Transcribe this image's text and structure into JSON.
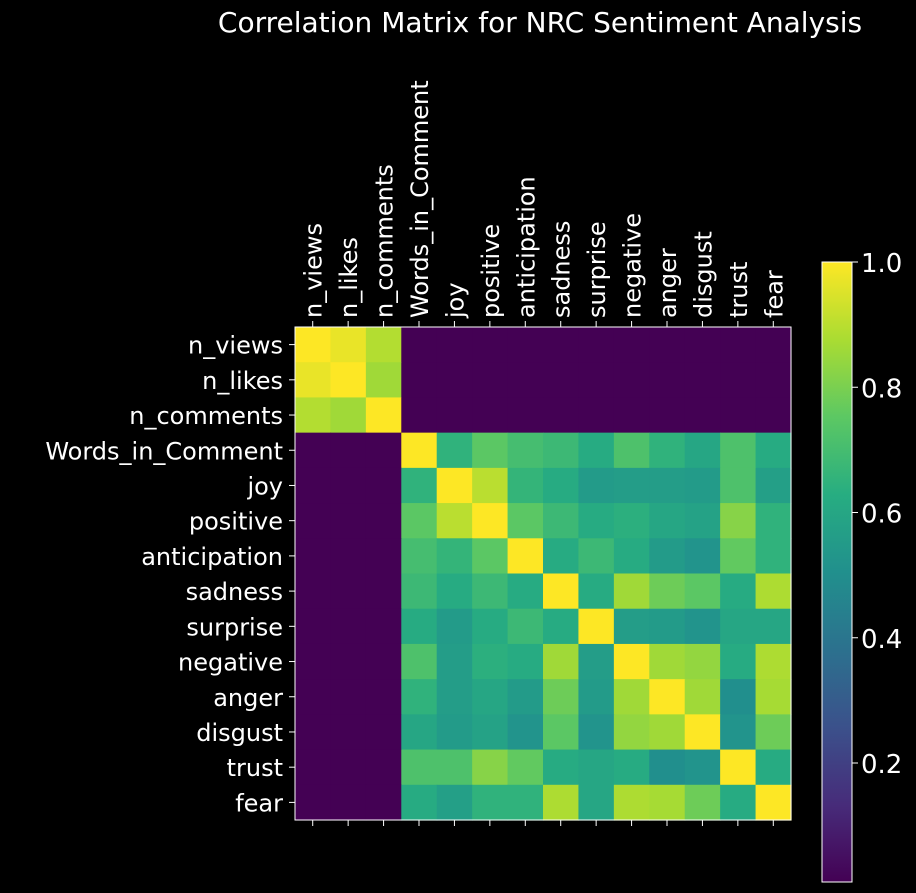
{
  "chart_data": {
    "type": "heatmap",
    "title": "Correlation Matrix for NRC Sentiment Analysis",
    "labels": [
      "n_views",
      "n_likes",
      "n_comments",
      "Words_in_Comment",
      "joy",
      "positive",
      "anticipation",
      "sadness",
      "surprise",
      "negative",
      "anger",
      "disgust",
      "trust",
      "fear"
    ],
    "values": [
      [
        1.0,
        0.97,
        0.89,
        0.01,
        0.01,
        0.01,
        0.01,
        0.01,
        0.01,
        0.01,
        0.01,
        0.01,
        0.01,
        0.01
      ],
      [
        0.97,
        1.0,
        0.86,
        0.01,
        0.01,
        0.01,
        0.01,
        0.01,
        0.01,
        0.01,
        0.01,
        0.01,
        0.01,
        0.01
      ],
      [
        0.89,
        0.86,
        1.0,
        0.01,
        0.01,
        0.01,
        0.01,
        0.01,
        0.01,
        0.01,
        0.01,
        0.01,
        0.01,
        0.01
      ],
      [
        0.01,
        0.01,
        0.01,
        1.0,
        0.65,
        0.75,
        0.7,
        0.68,
        0.62,
        0.72,
        0.65,
        0.6,
        0.72,
        0.62
      ],
      [
        0.01,
        0.01,
        0.01,
        0.65,
        1.0,
        0.9,
        0.66,
        0.62,
        0.55,
        0.56,
        0.56,
        0.55,
        0.72,
        0.57
      ],
      [
        0.01,
        0.01,
        0.01,
        0.75,
        0.9,
        1.0,
        0.75,
        0.68,
        0.62,
        0.64,
        0.6,
        0.58,
        0.82,
        0.65
      ],
      [
        0.01,
        0.01,
        0.01,
        0.7,
        0.66,
        0.75,
        1.0,
        0.62,
        0.68,
        0.62,
        0.55,
        0.52,
        0.76,
        0.65
      ],
      [
        0.01,
        0.01,
        0.01,
        0.68,
        0.62,
        0.68,
        0.62,
        1.0,
        0.62,
        0.86,
        0.78,
        0.75,
        0.62,
        0.88
      ],
      [
        0.01,
        0.01,
        0.01,
        0.62,
        0.55,
        0.62,
        0.68,
        0.62,
        1.0,
        0.56,
        0.55,
        0.52,
        0.6,
        0.6
      ],
      [
        0.01,
        0.01,
        0.01,
        0.72,
        0.56,
        0.64,
        0.62,
        0.86,
        0.56,
        1.0,
        0.86,
        0.84,
        0.62,
        0.88
      ],
      [
        0.01,
        0.01,
        0.01,
        0.65,
        0.56,
        0.6,
        0.55,
        0.78,
        0.55,
        0.86,
        1.0,
        0.86,
        0.5,
        0.87
      ],
      [
        0.01,
        0.01,
        0.01,
        0.6,
        0.55,
        0.58,
        0.52,
        0.75,
        0.52,
        0.84,
        0.86,
        1.0,
        0.52,
        0.78
      ],
      [
        0.01,
        0.01,
        0.01,
        0.72,
        0.72,
        0.82,
        0.76,
        0.62,
        0.6,
        0.62,
        0.5,
        0.52,
        1.0,
        0.62
      ],
      [
        0.01,
        0.01,
        0.01,
        0.62,
        0.57,
        0.65,
        0.65,
        0.88,
        0.6,
        0.88,
        0.87,
        0.78,
        0.62,
        1.0
      ]
    ],
    "colormap": "viridis",
    "colorbar": {
      "min": 0.01,
      "max": 1.0,
      "ticks": [
        0.2,
        0.4,
        0.6,
        0.8,
        1.0
      ],
      "tick_labels": [
        "0.2",
        "0.4",
        "0.6",
        "0.8",
        "1.0"
      ]
    },
    "grid": false,
    "x_tick_position": "top"
  }
}
